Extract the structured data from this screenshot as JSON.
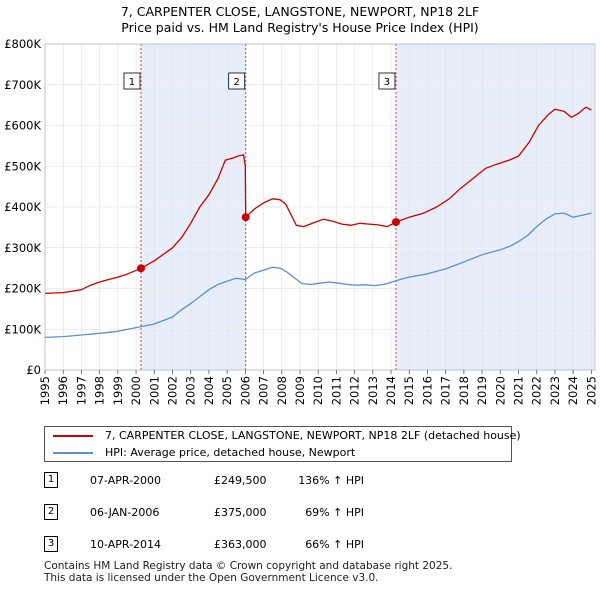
{
  "title_line1": "7, CARPENTER CLOSE, LANGSTONE, NEWPORT, NP18 2LF",
  "title_line2": "Price paid vs. HM Land Registry's House Price Index (HPI)",
  "chart_data": {
    "type": "line",
    "x_range": [
      1995.0,
      2025.2
    ],
    "ylim": [
      0,
      800000
    ],
    "y_ticks": [
      0,
      100000,
      200000,
      300000,
      400000,
      500000,
      600000,
      700000,
      800000
    ],
    "y_tick_labels": [
      "£0",
      "£100K",
      "£200K",
      "£300K",
      "£400K",
      "£500K",
      "£600K",
      "£700K",
      "£800K"
    ],
    "x_ticks": [
      1995,
      1996,
      1997,
      1998,
      1999,
      2000,
      2001,
      2002,
      2003,
      2004,
      2005,
      2006,
      2007,
      2008,
      2009,
      2010,
      2011,
      2012,
      2013,
      2014,
      2015,
      2016,
      2017,
      2018,
      2019,
      2020,
      2021,
      2022,
      2023,
      2024,
      2025
    ],
    "x_tick_labels": [
      "1995",
      "1996",
      "1997",
      "1998",
      "1999",
      "2000",
      "2001",
      "2002",
      "2003",
      "2004",
      "2005",
      "2006",
      "2007",
      "2008",
      "2009",
      "2010",
      "2011",
      "2012",
      "2013",
      "2014",
      "2015",
      "2016",
      "2017",
      "2018",
      "2019",
      "2020",
      "2021",
      "2022",
      "2023",
      "2024",
      "2025"
    ],
    "grid": true,
    "shaded_periods": [
      [
        2000.27,
        2006.02
      ],
      [
        2014.27,
        2025.2
      ]
    ],
    "series": [
      {
        "name": "7, CARPENTER CLOSE, LANGSTONE, NEWPORT, NP18 2LF (detached house)",
        "color": "#cc0000",
        "x": [
          1995.0,
          1996.0,
          1997.0,
          1997.5,
          1998.0,
          1998.5,
          1999.0,
          1999.5,
          2000.27,
          2001.0,
          2002.0,
          2002.5,
          2003.0,
          2003.5,
          2004.0,
          2004.5,
          2004.9,
          2005.3,
          2005.6,
          2005.9,
          2006.0,
          2006.02,
          2006.5,
          2007.0,
          2007.5,
          2007.9,
          2008.2,
          2008.5,
          2008.8,
          2009.2,
          2009.8,
          2010.3,
          2010.8,
          2011.3,
          2011.8,
          2012.3,
          2012.8,
          2013.3,
          2013.8,
          2014.27,
          2015.0,
          2015.8,
          2016.5,
          2017.2,
          2017.8,
          2018.5,
          2019.2,
          2019.8,
          2020.5,
          2021.0,
          2021.6,
          2022.1,
          2022.6,
          2023.0,
          2023.5,
          2023.9,
          2024.3,
          2024.7,
          2025.0
        ],
        "y": [
          188000,
          190000,
          197000,
          208000,
          216000,
          222000,
          228000,
          235000,
          249500,
          268000,
          300000,
          325000,
          360000,
          400000,
          430000,
          470000,
          515000,
          520000,
          525000,
          528000,
          500000,
          375000,
          395000,
          410000,
          420000,
          418000,
          408000,
          382000,
          355000,
          352000,
          362000,
          370000,
          365000,
          358000,
          355000,
          360000,
          358000,
          356000,
          352000,
          363000,
          375000,
          385000,
          400000,
          420000,
          445000,
          470000,
          495000,
          505000,
          515000,
          525000,
          560000,
          600000,
          625000,
          640000,
          635000,
          620000,
          630000,
          645000,
          638000
        ]
      },
      {
        "name": "HPI: Average price, detached house, Newport",
        "color": "#5b8fd6",
        "x": [
          1995.0,
          1996.0,
          1997.0,
          1998.0,
          1999.0,
          2000.0,
          2001.0,
          2002.0,
          2002.5,
          2003.0,
          2003.5,
          2004.0,
          2004.5,
          2005.0,
          2005.5,
          2006.0,
          2006.5,
          2007.0,
          2007.5,
          2007.9,
          2008.3,
          2008.7,
          2009.1,
          2009.6,
          2010.1,
          2010.6,
          2011.1,
          2011.6,
          2012.1,
          2012.6,
          2013.1,
          2013.6,
          2014.0,
          2014.5,
          2015.0,
          2016.0,
          2017.0,
          2018.0,
          2019.0,
          2020.0,
          2020.6,
          2021.0,
          2021.5,
          2022.0,
          2022.5,
          2023.0,
          2023.5,
          2024.0,
          2024.5,
          2025.0
        ],
        "y": [
          80000,
          82000,
          86000,
          90000,
          95000,
          104000,
          113000,
          130000,
          148000,
          163000,
          180000,
          197000,
          210000,
          218000,
          225000,
          222000,
          238000,
          245000,
          252000,
          250000,
          240000,
          226000,
          212000,
          210000,
          213000,
          216000,
          213000,
          210000,
          208000,
          209000,
          207000,
          210000,
          215000,
          222000,
          228000,
          236000,
          248000,
          265000,
          283000,
          295000,
          305000,
          315000,
          330000,
          352000,
          370000,
          383000,
          385000,
          375000,
          380000,
          385000
        ]
      }
    ],
    "sale_markers": [
      {
        "label": "1",
        "x": 2000.27,
        "y": 249500
      },
      {
        "label": "2",
        "x": 2006.02,
        "y": 375000
      },
      {
        "label": "3",
        "x": 2014.27,
        "y": 363000
      }
    ]
  },
  "legend": {
    "items": [
      {
        "label": "7, CARPENTER CLOSE, LANGSTONE, NEWPORT, NP18 2LF (detached house)",
        "color": "#cc0000"
      },
      {
        "label": "HPI: Average price, detached house, Newport",
        "color": "#5b8fd6"
      }
    ]
  },
  "sales": [
    {
      "num": "1",
      "date": "07-APR-2000",
      "price": "£249,500",
      "hpi": "136% ↑ HPI"
    },
    {
      "num": "2",
      "date": "06-JAN-2006",
      "price": "£375,000",
      "hpi": "69% ↑ HPI"
    },
    {
      "num": "3",
      "date": "10-APR-2014",
      "price": "£363,000",
      "hpi": "66% ↑ HPI"
    }
  ],
  "footer": {
    "line1": "Contains HM Land Registry data © Crown copyright and database right 2025.",
    "line2": "This data is licensed under the Open Government Licence v3.0."
  }
}
